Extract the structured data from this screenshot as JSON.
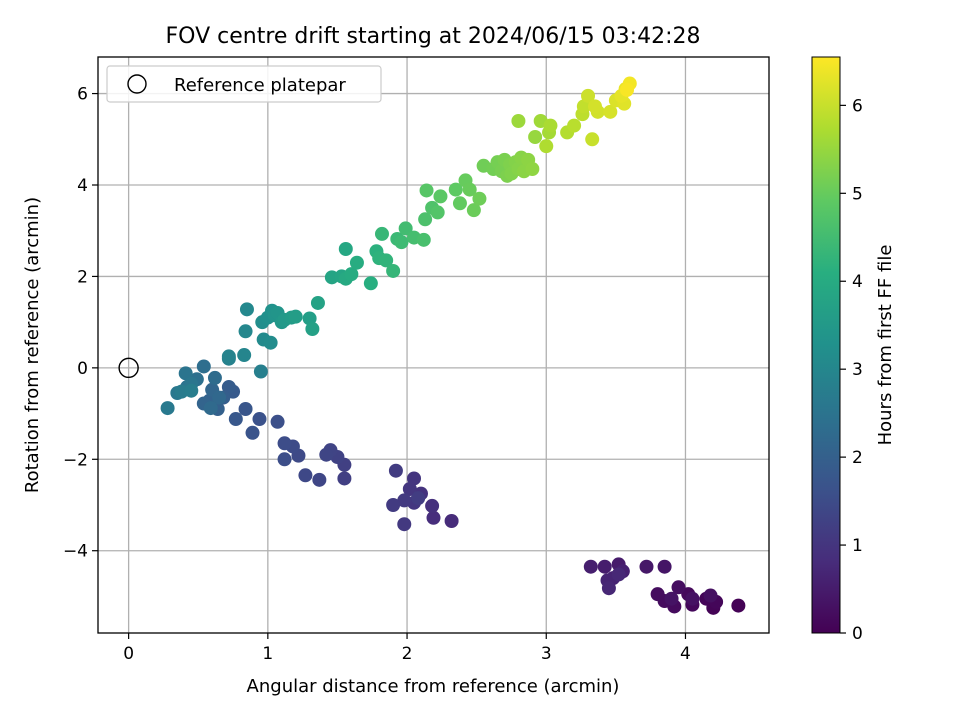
{
  "chart_data": {
    "type": "scatter",
    "title": "FOV centre drift starting at 2024/06/15 03:42:28",
    "xlabel": "Angular distance from reference (arcmin)",
    "ylabel": "Rotation from reference (arcmin)",
    "xlim": [
      -0.22,
      4.6
    ],
    "ylim": [
      -5.8,
      6.8
    ],
    "xticks": [
      0,
      1,
      2,
      3,
      4
    ],
    "yticks": [
      -4,
      -2,
      0,
      2,
      4,
      6
    ],
    "xtick_labels": [
      "0",
      "1",
      "2",
      "3",
      "4"
    ],
    "ytick_labels": [
      "−4",
      "−2",
      "0",
      "2",
      "4",
      "6"
    ],
    "grid": true,
    "legend": {
      "label": "Reference platepar",
      "position": "top-left"
    },
    "reference_point": {
      "x": 0,
      "y": 0
    },
    "colorbar": {
      "label": "Hours from first FF file",
      "min": 0,
      "max": 6.55,
      "ticks": [
        0,
        1,
        2,
        3,
        4,
        5,
        6
      ],
      "tick_labels": [
        "0",
        "1",
        "2",
        "3",
        "4",
        "5",
        "6"
      ],
      "colormap": "viridis"
    },
    "points": [
      {
        "x": 4.38,
        "y": -5.2,
        "c": 0.02
      },
      {
        "x": 4.2,
        "y": -5.25,
        "c": 0.05
      },
      {
        "x": 4.15,
        "y": -5.05,
        "c": 0.08
      },
      {
        "x": 4.22,
        "y": -5.12,
        "c": 0.1
      },
      {
        "x": 4.05,
        "y": -5.18,
        "c": 0.12
      },
      {
        "x": 4.02,
        "y": -4.95,
        "c": 0.15
      },
      {
        "x": 3.92,
        "y": -5.22,
        "c": 0.18
      },
      {
        "x": 3.85,
        "y": -5.1,
        "c": 0.2
      },
      {
        "x": 3.8,
        "y": -4.95,
        "c": 0.22
      },
      {
        "x": 3.95,
        "y": -4.8,
        "c": 0.25
      },
      {
        "x": 4.18,
        "y": -4.98,
        "c": 0.28
      },
      {
        "x": 4.05,
        "y": -5.05,
        "c": 0.3
      },
      {
        "x": 3.9,
        "y": -5.05,
        "c": 0.33
      },
      {
        "x": 3.85,
        "y": -4.35,
        "c": 0.38
      },
      {
        "x": 3.72,
        "y": -4.35,
        "c": 0.42
      },
      {
        "x": 3.52,
        "y": -4.3,
        "c": 0.48
      },
      {
        "x": 3.42,
        "y": -4.35,
        "c": 0.52
      },
      {
        "x": 3.32,
        "y": -4.35,
        "c": 0.55
      },
      {
        "x": 3.55,
        "y": -4.45,
        "c": 0.58
      },
      {
        "x": 3.48,
        "y": -4.6,
        "c": 0.62
      },
      {
        "x": 3.44,
        "y": -4.65,
        "c": 0.66
      },
      {
        "x": 3.45,
        "y": -4.82,
        "c": 0.7
      },
      {
        "x": 3.52,
        "y": -4.52,
        "c": 0.72
      },
      {
        "x": 2.32,
        "y": -3.35,
        "c": 0.8
      },
      {
        "x": 2.19,
        "y": -3.28,
        "c": 0.85
      },
      {
        "x": 2.18,
        "y": -3.02,
        "c": 0.9
      },
      {
        "x": 2.1,
        "y": -2.75,
        "c": 0.95
      },
      {
        "x": 2.05,
        "y": -2.42,
        "c": 1.0
      },
      {
        "x": 2.02,
        "y": -2.65,
        "c": 1.02
      },
      {
        "x": 2.05,
        "y": -2.95,
        "c": 1.05
      },
      {
        "x": 1.98,
        "y": -3.42,
        "c": 1.08
      },
      {
        "x": 1.98,
        "y": -2.9,
        "c": 1.1
      },
      {
        "x": 1.9,
        "y": -3.0,
        "c": 1.13
      },
      {
        "x": 1.92,
        "y": -2.25,
        "c": 1.15
      },
      {
        "x": 2.08,
        "y": -2.85,
        "c": 1.18
      },
      {
        "x": 1.55,
        "y": -2.42,
        "c": 1.22
      },
      {
        "x": 1.55,
        "y": -2.12,
        "c": 1.25
      },
      {
        "x": 1.5,
        "y": -1.95,
        "c": 1.28
      },
      {
        "x": 1.45,
        "y": -1.8,
        "c": 1.32
      },
      {
        "x": 1.42,
        "y": -1.9,
        "c": 1.35
      },
      {
        "x": 1.37,
        "y": -2.45,
        "c": 1.38
      },
      {
        "x": 1.27,
        "y": -2.35,
        "c": 1.42
      },
      {
        "x": 1.22,
        "y": -1.92,
        "c": 1.45
      },
      {
        "x": 1.18,
        "y": -1.72,
        "c": 1.48
      },
      {
        "x": 1.12,
        "y": -1.65,
        "c": 1.52
      },
      {
        "x": 1.12,
        "y": -2.0,
        "c": 1.55
      },
      {
        "x": 1.07,
        "y": -1.18,
        "c": 1.6
      },
      {
        "x": 0.94,
        "y": -1.12,
        "c": 1.65
      },
      {
        "x": 0.89,
        "y": -1.42,
        "c": 1.7
      },
      {
        "x": 0.84,
        "y": -0.9,
        "c": 1.75
      },
      {
        "x": 0.77,
        "y": -1.12,
        "c": 1.8
      },
      {
        "x": 0.75,
        "y": -0.52,
        "c": 1.85
      },
      {
        "x": 0.72,
        "y": -0.42,
        "c": 1.9
      },
      {
        "x": 0.68,
        "y": -0.65,
        "c": 1.95
      },
      {
        "x": 0.64,
        "y": -0.9,
        "c": 2.0
      },
      {
        "x": 0.58,
        "y": -0.72,
        "c": 2.05
      },
      {
        "x": 0.54,
        "y": -0.78,
        "c": 2.1
      },
      {
        "x": 0.6,
        "y": -0.48,
        "c": 2.15
      },
      {
        "x": 0.65,
        "y": -0.65,
        "c": 2.2
      },
      {
        "x": 0.59,
        "y": -0.88,
        "c": 2.25
      },
      {
        "x": 0.62,
        "y": -0.22,
        "c": 2.3
      },
      {
        "x": 0.54,
        "y": 0.03,
        "c": 2.35
      },
      {
        "x": 0.49,
        "y": -0.25,
        "c": 2.4
      },
      {
        "x": 0.42,
        "y": -0.42,
        "c": 2.45
      },
      {
        "x": 0.41,
        "y": -0.12,
        "c": 2.5
      },
      {
        "x": 0.45,
        "y": -0.35,
        "c": 2.55
      },
      {
        "x": 0.35,
        "y": -0.55,
        "c": 2.6
      },
      {
        "x": 0.28,
        "y": -0.88,
        "c": 2.65
      },
      {
        "x": 0.38,
        "y": -0.52,
        "c": 2.7
      },
      {
        "x": 0.45,
        "y": -0.5,
        "c": 2.75
      },
      {
        "x": 0.95,
        "y": -0.08,
        "c": 2.8
      },
      {
        "x": 0.72,
        "y": 0.2,
        "c": 2.85
      },
      {
        "x": 0.72,
        "y": 0.25,
        "c": 2.9
      },
      {
        "x": 0.83,
        "y": 0.28,
        "c": 2.95
      },
      {
        "x": 0.84,
        "y": 0.8,
        "c": 3.0
      },
      {
        "x": 0.85,
        "y": 1.28,
        "c": 3.05
      },
      {
        "x": 0.97,
        "y": 0.62,
        "c": 3.1
      },
      {
        "x": 1.02,
        "y": 0.55,
        "c": 3.15
      },
      {
        "x": 0.96,
        "y": 1.0,
        "c": 3.2
      },
      {
        "x": 1.0,
        "y": 1.1,
        "c": 3.25
      },
      {
        "x": 1.03,
        "y": 1.25,
        "c": 3.3
      },
      {
        "x": 1.05,
        "y": 1.15,
        "c": 3.35
      },
      {
        "x": 1.07,
        "y": 1.2,
        "c": 3.4
      },
      {
        "x": 1.1,
        "y": 1.0,
        "c": 3.45
      },
      {
        "x": 1.12,
        "y": 1.05,
        "c": 3.5
      },
      {
        "x": 1.17,
        "y": 1.1,
        "c": 3.55
      },
      {
        "x": 1.2,
        "y": 1.12,
        "c": 3.6
      },
      {
        "x": 1.3,
        "y": 1.08,
        "c": 3.65
      },
      {
        "x": 1.32,
        "y": 0.85,
        "c": 3.7
      },
      {
        "x": 1.36,
        "y": 1.42,
        "c": 3.75
      },
      {
        "x": 1.46,
        "y": 1.98,
        "c": 3.8
      },
      {
        "x": 1.53,
        "y": 2.0,
        "c": 3.85
      },
      {
        "x": 1.56,
        "y": 2.6,
        "c": 3.9
      },
      {
        "x": 1.56,
        "y": 1.95,
        "c": 3.95
      },
      {
        "x": 1.6,
        "y": 2.05,
        "c": 4.0
      },
      {
        "x": 1.64,
        "y": 2.3,
        "c": 4.05
      },
      {
        "x": 1.74,
        "y": 1.85,
        "c": 4.1
      },
      {
        "x": 1.78,
        "y": 2.55,
        "c": 4.15
      },
      {
        "x": 1.8,
        "y": 2.4,
        "c": 4.2
      },
      {
        "x": 1.85,
        "y": 2.35,
        "c": 4.25
      },
      {
        "x": 1.9,
        "y": 2.12,
        "c": 4.3
      },
      {
        "x": 1.82,
        "y": 2.93,
        "c": 4.35
      },
      {
        "x": 1.93,
        "y": 2.82,
        "c": 4.4
      },
      {
        "x": 1.96,
        "y": 2.75,
        "c": 4.45
      },
      {
        "x": 1.99,
        "y": 3.05,
        "c": 4.5
      },
      {
        "x": 2.05,
        "y": 2.85,
        "c": 4.55
      },
      {
        "x": 2.12,
        "y": 2.8,
        "c": 4.6
      },
      {
        "x": 2.13,
        "y": 3.25,
        "c": 4.65
      },
      {
        "x": 2.18,
        "y": 3.5,
        "c": 4.7
      },
      {
        "x": 2.22,
        "y": 3.4,
        "c": 4.75
      },
      {
        "x": 2.14,
        "y": 3.88,
        "c": 4.8
      },
      {
        "x": 2.24,
        "y": 3.75,
        "c": 4.85
      },
      {
        "x": 2.35,
        "y": 3.9,
        "c": 4.9
      },
      {
        "x": 2.38,
        "y": 3.6,
        "c": 4.95
      },
      {
        "x": 2.42,
        "y": 4.1,
        "c": 5.0
      },
      {
        "x": 2.45,
        "y": 3.9,
        "c": 5.02
      },
      {
        "x": 2.48,
        "y": 3.45,
        "c": 5.05
      },
      {
        "x": 2.52,
        "y": 3.7,
        "c": 5.08
      },
      {
        "x": 2.55,
        "y": 4.42,
        "c": 5.1
      },
      {
        "x": 2.62,
        "y": 4.35,
        "c": 5.12
      },
      {
        "x": 2.65,
        "y": 4.5,
        "c": 5.15
      },
      {
        "x": 2.68,
        "y": 4.3,
        "c": 5.18
      },
      {
        "x": 2.7,
        "y": 4.55,
        "c": 5.2
      },
      {
        "x": 2.72,
        "y": 4.2,
        "c": 5.23
      },
      {
        "x": 2.74,
        "y": 4.45,
        "c": 5.25
      },
      {
        "x": 2.75,
        "y": 4.25,
        "c": 5.28
      },
      {
        "x": 2.78,
        "y": 4.5,
        "c": 5.3
      },
      {
        "x": 2.8,
        "y": 4.35,
        "c": 5.33
      },
      {
        "x": 2.82,
        "y": 4.6,
        "c": 5.35
      },
      {
        "x": 2.84,
        "y": 4.3,
        "c": 5.38
      },
      {
        "x": 2.87,
        "y": 4.55,
        "c": 5.4
      },
      {
        "x": 2.9,
        "y": 4.35,
        "c": 5.42
      },
      {
        "x": 2.92,
        "y": 5.05,
        "c": 5.5
      },
      {
        "x": 2.8,
        "y": 5.4,
        "c": 5.55
      },
      {
        "x": 2.96,
        "y": 5.4,
        "c": 5.6
      },
      {
        "x": 3.02,
        "y": 5.15,
        "c": 5.65
      },
      {
        "x": 3.03,
        "y": 5.3,
        "c": 5.7
      },
      {
        "x": 3.0,
        "y": 4.85,
        "c": 5.75
      },
      {
        "x": 3.15,
        "y": 5.15,
        "c": 5.8
      },
      {
        "x": 3.2,
        "y": 5.3,
        "c": 5.85
      },
      {
        "x": 3.26,
        "y": 5.55,
        "c": 5.9
      },
      {
        "x": 3.27,
        "y": 5.72,
        "c": 5.95
      },
      {
        "x": 3.33,
        "y": 5.0,
        "c": 6.0
      },
      {
        "x": 3.3,
        "y": 5.95,
        "c": 6.05
      },
      {
        "x": 3.37,
        "y": 5.6,
        "c": 6.1
      },
      {
        "x": 3.35,
        "y": 5.72,
        "c": 6.12
      },
      {
        "x": 3.46,
        "y": 5.6,
        "c": 6.15
      },
      {
        "x": 3.5,
        "y": 5.85,
        "c": 6.2
      },
      {
        "x": 3.56,
        "y": 5.78,
        "c": 6.25
      },
      {
        "x": 3.54,
        "y": 5.95,
        "c": 6.3
      },
      {
        "x": 3.57,
        "y": 6.1,
        "c": 6.35
      },
      {
        "x": 3.6,
        "y": 6.22,
        "c": 6.45
      },
      {
        "x": 3.58,
        "y": 6.08,
        "c": 6.5
      }
    ]
  }
}
